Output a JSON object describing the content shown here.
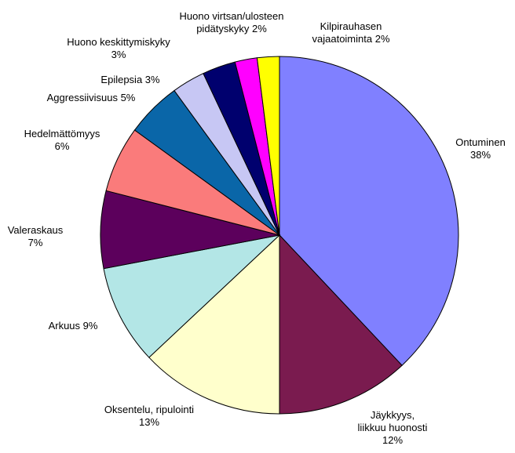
{
  "chart_data": {
    "type": "pie",
    "slices": [
      {
        "name": "Ontuminen",
        "value": 38,
        "pct_text": "38%",
        "color": "#8080ff"
      },
      {
        "name": "Jäykkyys, liikkuu huonosti",
        "value": 12,
        "pct_text": "12%",
        "color": "#7a1b4f"
      },
      {
        "name": "Oksentelu, ripulointi",
        "value": 13,
        "pct_text": "13%",
        "color": "#ffffcc"
      },
      {
        "name": "Arkuus",
        "value": 9,
        "pct_text": "9%",
        "color": "#b3e6e6"
      },
      {
        "name": "Valeraskaus",
        "value": 7,
        "pct_text": "7%",
        "color": "#5c005c"
      },
      {
        "name": "Hedelmättömyys",
        "value": 6,
        "pct_text": "6%",
        "color": "#fa7b7b"
      },
      {
        "name": "Aggressiivisuus",
        "value": 5,
        "pct_text": "5%",
        "color": "#0a66a8"
      },
      {
        "name": "Epilepsia",
        "value": 3,
        "pct_text": "3%",
        "color": "#c7c7f4"
      },
      {
        "name": "Huono keskittymiskyky",
        "value": 3,
        "pct_text": "3%",
        "color": "#00006e"
      },
      {
        "name": "Huono virtsan/ulosteen pidätyskyky",
        "value": 2,
        "pct_text": "2%",
        "color": "#ff00ff"
      },
      {
        "name": "Kilpirauhasen vajaatoiminta",
        "value": 2,
        "pct_text": "2%",
        "color": "#ffff00"
      }
    ],
    "labels": [
      {
        "lines": [
          "Ontuminen",
          "38%"
        ]
      },
      {
        "lines": [
          "Jäykkyys,",
          "liikkuu huonosti",
          "12%"
        ]
      },
      {
        "lines": [
          "Oksentelu, ripulointi",
          "13%"
        ]
      },
      {
        "lines": [
          "Arkuus 9%"
        ]
      },
      {
        "lines": [
          "Valeraskaus",
          "7%"
        ]
      },
      {
        "lines": [
          "Hedelmättömyys",
          "6%"
        ]
      },
      {
        "lines": [
          "Aggressiivisuus 5%"
        ]
      },
      {
        "lines": [
          "Epilepsia 3%"
        ]
      },
      {
        "lines": [
          "Huono keskittymiskyky",
          "3%"
        ]
      },
      {
        "lines": [
          "Huono virtsan/ulosteen",
          "pidätyskyky 2%"
        ]
      },
      {
        "lines": [
          "Kilpirauhasen",
          "vajaatoiminta 2%"
        ]
      }
    ]
  }
}
